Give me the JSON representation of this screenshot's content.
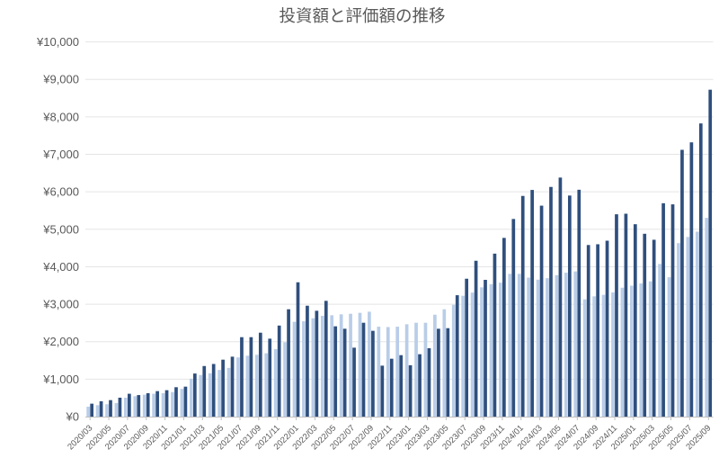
{
  "chart": {
    "title": "投資額と評価額の推移",
    "colors": {
      "investment_bar": "#B9CDE8",
      "valuation_bar": "#2F4F7D",
      "gridline": "#E5E5E5",
      "axis_line": "#C0C0C0",
      "text": "#595959",
      "background": "#FFFFFF"
    }
  },
  "chart_data": {
    "type": "bar",
    "title": "投資額と評価額の推移",
    "xlabel": "",
    "ylabel": "",
    "ylim": [
      0,
      10000
    ],
    "y_tick_step": 1000,
    "y_tick_labels": [
      "¥0",
      "¥1,000",
      "¥2,000",
      "¥3,000",
      "¥4,000",
      "¥5,000",
      "¥6,000",
      "¥7,000",
      "¥8,000",
      "¥9,000",
      "¥10,000"
    ],
    "x_label_interval": 2,
    "grid": true,
    "legend": "none",
    "categories": [
      "2020/03",
      "2020/04",
      "2020/05",
      "2020/06",
      "2020/07",
      "2020/08",
      "2020/09",
      "2020/10",
      "2020/11",
      "2020/12",
      "2021/01",
      "2021/02",
      "2021/03",
      "2021/04",
      "2021/05",
      "2021/06",
      "2021/07",
      "2021/08",
      "2021/09",
      "2021/10",
      "2021/11",
      "2021/12",
      "2022/01",
      "2022/02",
      "2022/03",
      "2022/04",
      "2022/05",
      "2022/06",
      "2022/07",
      "2022/08",
      "2022/09",
      "2022/10",
      "2022/11",
      "2022/12",
      "2023/01",
      "2023/02",
      "2023/03",
      "2023/04",
      "2023/05",
      "2023/06",
      "2023/07",
      "2023/08",
      "2023/09",
      "2023/10",
      "2023/11",
      "2023/12",
      "2024/01",
      "2024/02",
      "2024/03",
      "2024/04",
      "2024/05",
      "2024/06",
      "2024/07",
      "2024/08",
      "2024/09",
      "2024/10",
      "2024/11",
      "2024/12",
      "2025/01",
      "2025/02",
      "2025/03",
      "2025/04",
      "2025/05",
      "2025/06",
      "2025/07",
      "2025/08",
      "2025/09"
    ],
    "series": [
      {
        "name": "投資額",
        "values": [
          265,
          305,
          330,
          360,
          505,
          545,
          585,
          610,
          625,
          655,
          740,
          1010,
          1110,
          1155,
          1245,
          1300,
          1580,
          1625,
          1650,
          1690,
          1800,
          1985,
          2530,
          2545,
          2625,
          2690,
          2705,
          2730,
          2745,
          2770,
          2800,
          2400,
          2390,
          2400,
          2465,
          2505,
          2505,
          2720,
          2865,
          2985,
          3225,
          3310,
          3450,
          3535,
          3575,
          3810,
          3810,
          3710,
          3655,
          3695,
          3775,
          3840,
          3875,
          3130,
          3210,
          3250,
          3315,
          3440,
          3495,
          3555,
          3610,
          4075,
          3720,
          4630,
          4795,
          4935,
          5305
        ]
      },
      {
        "name": "評価額",
        "values": [
          345,
          410,
          440,
          505,
          610,
          575,
          625,
          680,
          705,
          785,
          800,
          1150,
          1350,
          1405,
          1520,
          1600,
          2120,
          2120,
          2240,
          2080,
          2430,
          2865,
          3585,
          2960,
          2825,
          3090,
          2410,
          2345,
          1840,
          2505,
          2290,
          1360,
          1545,
          1640,
          1370,
          1665,
          1825,
          2345,
          2360,
          3240,
          3680,
          4160,
          3650,
          4350,
          4770,
          5275,
          5890,
          6050,
          5630,
          6130,
          6380,
          5900,
          6055,
          4580,
          4600,
          4695,
          5400,
          5415,
          5135,
          4880,
          4720,
          5695,
          5665,
          7120,
          7320,
          7825,
          8725
        ]
      }
    ]
  }
}
